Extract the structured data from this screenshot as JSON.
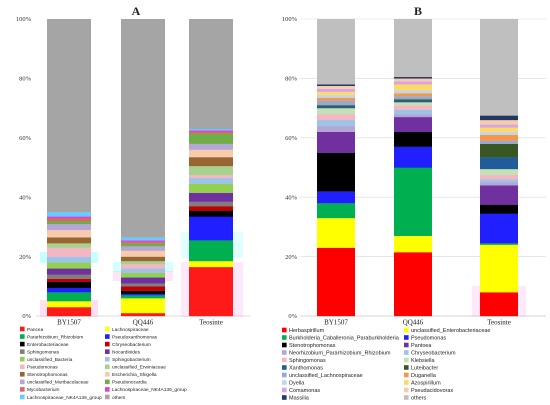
{
  "chart_data": [
    {
      "type": "bar",
      "stacked": true,
      "title": "A",
      "categories": [
        "BY1507",
        "QQ446",
        "Teosinte"
      ],
      "yticks": [
        "0%",
        "20%",
        "40%",
        "60%",
        "80%",
        "100%"
      ],
      "ylim": [
        0,
        100
      ],
      "grid": false,
      "legend": "bottom",
      "series": [
        {
          "name": "Pancea",
          "color": "#FF1A1A",
          "values": [
            3,
            1,
            16.5
          ]
        },
        {
          "name": "Lachnospiraceae",
          "color": "#FFFF00",
          "values": [
            2,
            5,
            2
          ]
        },
        {
          "name": "Pararhizobium_Rhizobium",
          "color": "#00B050",
          "values": [
            3,
            1,
            7
          ]
        },
        {
          "name": "Pseudoxanthomonas",
          "color": "#1F1FFF",
          "values": [
            1.5,
            0.5,
            8
          ]
        },
        {
          "name": "Enterobacteriaceae",
          "color": "#000000",
          "values": [
            2,
            1,
            2
          ]
        },
        {
          "name": "Chryseobacterium",
          "color": "#C00000",
          "values": [
            1,
            1.5,
            1.5
          ]
        },
        {
          "name": "Sphingomonas",
          "color": "#7F7F7F",
          "values": [
            1.5,
            1,
            1.5
          ]
        },
        {
          "name": "Nocardioides",
          "color": "#7030A0",
          "values": [
            2,
            2,
            3
          ]
        },
        {
          "name": "unclassified_Bacteria",
          "color": "#92D050",
          "values": [
            2,
            1.5,
            3
          ]
        },
        {
          "name": "Sphingobacterium",
          "color": "#9DC3E6",
          "values": [
            2,
            1.5,
            2
          ]
        },
        {
          "name": "Pseudomonas",
          "color": "#F4B6C2",
          "values": [
            3,
            1.5,
            1
          ]
        },
        {
          "name": "unclassified_Erwiniaceae",
          "color": "#A9D18E",
          "values": [
            1.5,
            1,
            3
          ]
        },
        {
          "name": "Stenotrophomonas",
          "color": "#996633",
          "values": [
            2,
            1.5,
            3
          ]
        },
        {
          "name": "Escherichia_Shigella",
          "color": "#F8CBAD",
          "values": [
            2.5,
            2,
            2.5
          ]
        },
        {
          "name": "unclassified_Muribaculaceae",
          "color": "#B4A7D6",
          "values": [
            2,
            1.5,
            2
          ]
        },
        {
          "name": "Pseudonocardia",
          "color": "#70AD47",
          "values": [
            1,
            1,
            3.5
          ]
        },
        {
          "name": "Mycobacterium",
          "color": "#E06666",
          "values": [
            1,
            0.5,
            0.5
          ]
        },
        {
          "name": "Lachnospiraceae_NK4A136_group",
          "color": "#E040E0",
          "values": [
            0.5,
            0.5,
            0.5
          ]
        },
        {
          "name": "Lachnospiraceae_NK4A136_group",
          "color": "#66CCFF",
          "values": [
            1.5,
            1,
            0.5
          ]
        },
        {
          "name": "others",
          "color": "#A5A5A5",
          "values": [
            65,
            73.5,
            37
          ]
        }
      ]
    },
    {
      "type": "bar",
      "stacked": true,
      "title": "B",
      "categories": [
        "BY1507",
        "QQ446",
        "Teosinte"
      ],
      "yticks": [
        "0%",
        "20%",
        "40%",
        "60%",
        "80%",
        "100%"
      ],
      "ylim": [
        0,
        100
      ],
      "grid": true,
      "legend": "bottom",
      "series": [
        {
          "name": "Herbaspirillum",
          "color": "#FF0000",
          "values": [
            23,
            21.5,
            8
          ]
        },
        {
          "name": "unclassified_Enterobacteriaceae",
          "color": "#FFFF00",
          "values": [
            10,
            5.5,
            16
          ]
        },
        {
          "name": "Burkholderia_Caballeronia_Paraburkholderia",
          "color": "#00B050",
          "values": [
            5,
            23,
            0.5
          ]
        },
        {
          "name": "Pseudomonas",
          "color": "#1F1FFF",
          "values": [
            4,
            7,
            10
          ]
        },
        {
          "name": "Stenotrophomonas",
          "color": "#000000",
          "values": [
            13,
            5,
            3
          ]
        },
        {
          "name": "Pantoea",
          "color": "#7030A0",
          "values": [
            7,
            5,
            6.5
          ]
        },
        {
          "name": "Neorhizobium_Pararhizobium_Rhizobium",
          "color": "#B4A7D6",
          "values": [
            2,
            1,
            1
          ]
        },
        {
          "name": "Chryseobacterium",
          "color": "#9DC3E6",
          "values": [
            2,
            1.5,
            1
          ]
        },
        {
          "name": "Sphingomonas",
          "color": "#F4B6C2",
          "values": [
            2,
            1.5,
            1.5
          ]
        },
        {
          "name": "Klebsiella",
          "color": "#C5E0B4",
          "values": [
            2,
            1,
            2
          ]
        },
        {
          "name": "Xanthomonas",
          "color": "#1F5C99",
          "values": [
            0.5,
            0.5,
            4
          ]
        },
        {
          "name": "Luteibacter",
          "color": "#385723",
          "values": [
            0.5,
            0.5,
            4.5
          ]
        },
        {
          "name": "unclassified_Lachnospiraceae",
          "color": "#8FAADC",
          "values": [
            1.5,
            1,
            1
          ]
        },
        {
          "name": "Duganella",
          "color": "#F79646",
          "values": [
            1,
            1,
            2
          ]
        },
        {
          "name": "Dyella",
          "color": "#BDD7EE",
          "values": [
            1,
            1,
            1
          ]
        },
        {
          "name": "Azospirillum",
          "color": "#FFD966",
          "values": [
            1,
            2,
            1.5
          ]
        },
        {
          "name": "Comamonas",
          "color": "#D5A6E6",
          "values": [
            1,
            1,
            1
          ]
        },
        {
          "name": "Pseudacidovorax",
          "color": "#F8CBAD",
          "values": [
            1,
            1,
            1.5
          ]
        },
        {
          "name": "Massilia",
          "color": "#203864",
          "values": [
            0.5,
            0.5,
            1.5
          ]
        },
        {
          "name": "others",
          "color": "#BFBFBF",
          "values": [
            22,
            19.5,
            32.5
          ]
        }
      ]
    }
  ]
}
